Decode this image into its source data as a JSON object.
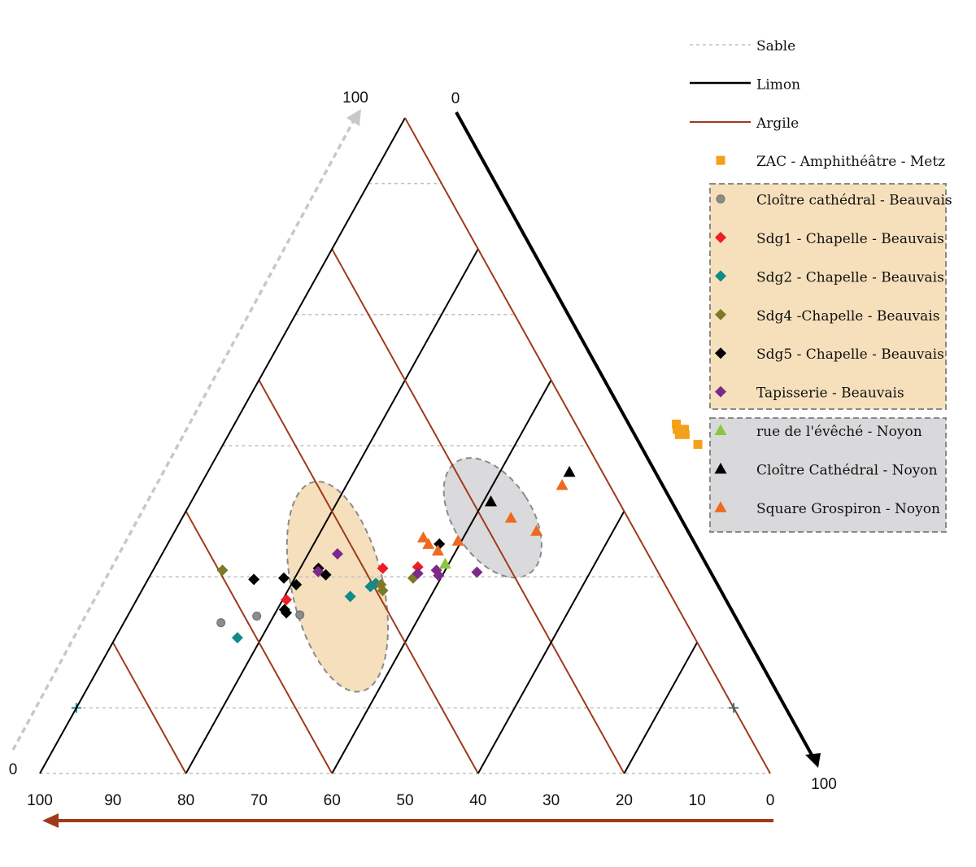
{
  "chart_data": {
    "type": "ternary-scatter",
    "axes": {
      "sable": {
        "legend_label": "Sable",
        "start_label": "0",
        "end_label": "100",
        "color": "#c8c8c8"
      },
      "limon": {
        "legend_label": "Limon",
        "start_label": "0",
        "end_label": "100",
        "color": "#000000"
      },
      "argile": {
        "legend_label": "Argile",
        "tick_labels": [
          "100",
          "90",
          "80",
          "70",
          "60",
          "50",
          "40",
          "30",
          "20",
          "10",
          "0"
        ],
        "color": "#a0391c"
      }
    },
    "grid": {
      "sable_levels": [
        10,
        30,
        50,
        70,
        90
      ],
      "line_levels": [
        20,
        40,
        60,
        80
      ]
    },
    "series": [
      {
        "name": "ZAC - Amphithéâtre - Metz",
        "marker": "square",
        "color": "#f5a01a",
        "group": "",
        "points": [
          [
            50.2,
            65
          ],
          [
            51.7,
            62.5
          ],
          [
            51.7,
            61.7
          ],
          [
            52.5,
            62
          ],
          [
            52.5,
            61
          ],
          [
            53.3,
            60.5
          ]
        ]
      },
      {
        "name": "Cloître cathédral - Beauvais",
        "marker": "circle",
        "color": "#8c8c8c",
        "group": "beauvais",
        "points": [
          [
            24.2,
            23.5
          ],
          [
            24,
            17.7
          ],
          [
            23,
            13.3
          ]
        ]
      },
      {
        "name": "Sdg1 - Chapelle - Beauvais",
        "marker": "diamond",
        "color": "#ee1c24",
        "group": "beauvais",
        "points": [
          [
            31.5,
            36
          ],
          [
            31.3,
            31.3
          ],
          [
            26.5,
            20.5
          ]
        ]
      },
      {
        "name": "Sdg2 - Chapelle - Beauvais",
        "marker": "diamond",
        "color": "#128a8a",
        "group": "beauvais",
        "points": [
          [
            29,
            31.5
          ],
          [
            28.5,
            31
          ],
          [
            27,
            29
          ],
          [
            20.7,
            16.7
          ]
        ]
      },
      {
        "name": "Sdg4 -Chapelle - Beauvais",
        "marker": "diamond",
        "color": "#7d7a26",
        "group": "beauvais",
        "points": [
          [
            29.8,
            36.2
          ],
          [
            27.9,
            33
          ],
          [
            28.8,
            32.3
          ],
          [
            31,
            9.5
          ]
        ]
      },
      {
        "name": "Sdg5 - Chapelle - Beauvais",
        "marker": "diamond",
        "color": "#000000",
        "group": "beauvais",
        "points": [
          [
            35,
            37.2
          ],
          [
            30.3,
            24
          ],
          [
            31.3,
            22.5
          ],
          [
            24.5,
            21.5
          ],
          [
            25,
            21
          ],
          [
            28.8,
            20.7
          ],
          [
            29.8,
            18.5
          ],
          [
            29.6,
            14.5
          ]
        ]
      },
      {
        "name": "Tapisserie - Beauvais",
        "marker": "diamond",
        "color": "#7b2a8a",
        "group": "beauvais",
        "points": [
          [
            30.7,
            44.5
          ],
          [
            30.2,
            39.5
          ],
          [
            31,
            38.8
          ],
          [
            30.5,
            36.5
          ],
          [
            33.5,
            24
          ],
          [
            30.8,
            22.7
          ]
        ]
      },
      {
        "name": "rue de l'évêché - Noyon",
        "marker": "triangle",
        "color": "#8cc63f",
        "group": "noyon",
        "points": [
          [
            32,
            39.5
          ]
        ]
      },
      {
        "name": "Cloître Cathédral - Noyon",
        "marker": "triangle",
        "color": "#000000",
        "group": "noyon",
        "points": [
          [
            46,
            49.5
          ],
          [
            41.5,
            41
          ]
        ]
      },
      {
        "name": "Square Grospiron - Noyon",
        "marker": "triangle",
        "color": "#ee6a1f",
        "group": "noyon",
        "points": [
          [
            44,
            49.5
          ],
          [
            37,
            49.5
          ],
          [
            39,
            45
          ],
          [
            35.5,
            39.5
          ],
          [
            34,
            37.5
          ],
          [
            35,
            35.7
          ],
          [
            36,
            34.5
          ]
        ]
      }
    ],
    "legend": {
      "position": "right",
      "groups": [
        {
          "id": "beauvais",
          "fill": "#f6e0bb"
        },
        {
          "id": "noyon",
          "fill": "#d9d9db"
        }
      ]
    },
    "ellipses": [
      {
        "group": "noyon",
        "center": [
          39,
          42.5
        ],
        "fill": "#d8d8da"
      },
      {
        "group": "beauvais",
        "center": [
          28.5,
          26.5
        ],
        "fill": "#f4ddb8"
      }
    ]
  }
}
